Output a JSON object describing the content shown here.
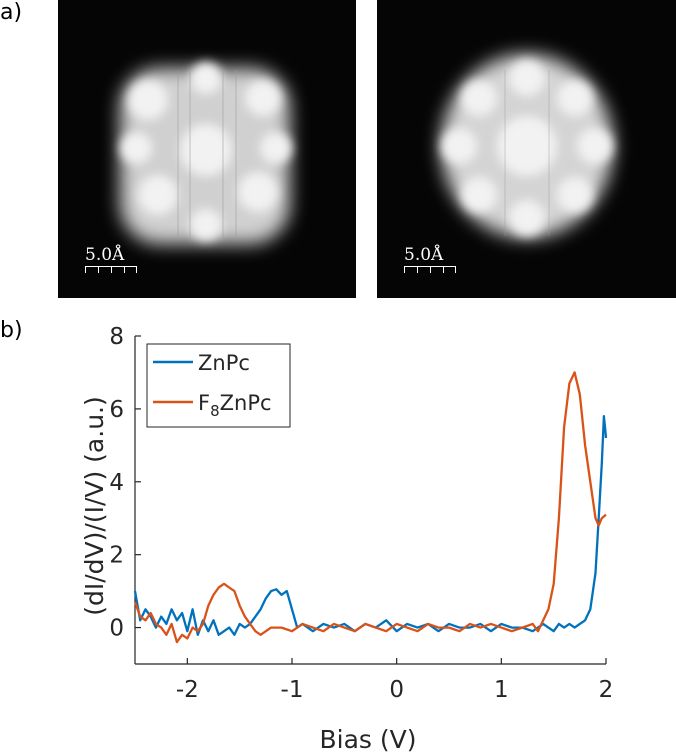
{
  "panels": {
    "a_label": "a)",
    "b_label": "b)"
  },
  "images": [
    {
      "name": "ZnPc STM image",
      "scale_label": "5.0Å"
    },
    {
      "name": "F8ZnPc STM image",
      "scale_label": "5.0Å"
    }
  ],
  "chart_data": {
    "type": "line",
    "xlabel": "Bias (V)",
    "ylabel": "(dI/dV)/(I/V) (a.u.)",
    "xlim": [
      -2.5,
      2.0
    ],
    "ylim": [
      -1,
      8
    ],
    "xticks": [
      -2,
      -1,
      0,
      1,
      2
    ],
    "yticks": [
      0,
      2,
      4,
      6,
      8
    ],
    "legend_position": "top-left",
    "series": [
      {
        "name": "ZnPc",
        "color": "#0072BD",
        "x": [
          -2.5,
          -2.45,
          -2.4,
          -2.35,
          -2.3,
          -2.25,
          -2.2,
          -2.15,
          -2.1,
          -2.05,
          -2.0,
          -1.95,
          -1.9,
          -1.85,
          -1.8,
          -1.75,
          -1.7,
          -1.65,
          -1.6,
          -1.55,
          -1.5,
          -1.45,
          -1.4,
          -1.35,
          -1.3,
          -1.25,
          -1.2,
          -1.15,
          -1.1,
          -1.05,
          -1.0,
          -0.95,
          -0.9,
          -0.8,
          -0.7,
          -0.6,
          -0.5,
          -0.4,
          -0.3,
          -0.2,
          -0.1,
          0.0,
          0.1,
          0.2,
          0.3,
          0.4,
          0.5,
          0.6,
          0.7,
          0.8,
          0.9,
          1.0,
          1.1,
          1.2,
          1.3,
          1.4,
          1.45,
          1.5,
          1.55,
          1.6,
          1.65,
          1.7,
          1.75,
          1.8,
          1.85,
          1.9,
          1.93,
          1.96,
          1.98,
          1.99,
          2.0
        ],
        "y": [
          1.0,
          0.2,
          0.5,
          0.3,
          0.0,
          0.3,
          0.1,
          0.5,
          0.2,
          0.4,
          -0.1,
          0.5,
          -0.2,
          0.2,
          -0.1,
          0.2,
          -0.2,
          -0.1,
          0.0,
          -0.2,
          0.1,
          0.0,
          0.1,
          0.3,
          0.5,
          0.8,
          1.0,
          1.05,
          0.9,
          1.0,
          0.5,
          0.0,
          0.1,
          -0.1,
          0.1,
          0.0,
          0.1,
          -0.1,
          0.1,
          0.0,
          0.2,
          -0.1,
          0.1,
          0.0,
          0.1,
          -0.1,
          0.1,
          0.0,
          0.0,
          0.1,
          -0.1,
          0.1,
          0.0,
          0.0,
          -0.1,
          0.1,
          0.0,
          -0.1,
          0.1,
          0.0,
          0.1,
          0.0,
          0.1,
          0.2,
          0.5,
          1.5,
          3.0,
          4.5,
          5.8,
          5.5,
          5.2
        ]
      },
      {
        "name": "F8ZnPc",
        "color": "#D95319",
        "x": [
          -2.5,
          -2.45,
          -2.4,
          -2.35,
          -2.3,
          -2.25,
          -2.2,
          -2.15,
          -2.1,
          -2.05,
          -2.0,
          -1.95,
          -1.9,
          -1.85,
          -1.8,
          -1.75,
          -1.7,
          -1.65,
          -1.6,
          -1.55,
          -1.5,
          -1.45,
          -1.4,
          -1.35,
          -1.3,
          -1.2,
          -1.1,
          -1.0,
          -0.9,
          -0.8,
          -0.7,
          -0.6,
          -0.5,
          -0.4,
          -0.3,
          -0.2,
          -0.1,
          0.0,
          0.1,
          0.2,
          0.3,
          0.4,
          0.5,
          0.6,
          0.7,
          0.8,
          0.9,
          1.0,
          1.1,
          1.2,
          1.3,
          1.35,
          1.4,
          1.45,
          1.5,
          1.55,
          1.6,
          1.65,
          1.7,
          1.75,
          1.8,
          1.85,
          1.9,
          1.93,
          1.96,
          2.0
        ],
        "y": [
          0.7,
          0.3,
          0.2,
          0.4,
          0.1,
          0.0,
          -0.2,
          0.1,
          -0.4,
          -0.2,
          -0.3,
          0.0,
          -0.1,
          0.1,
          0.6,
          0.9,
          1.1,
          1.2,
          1.1,
          1.0,
          0.6,
          0.3,
          0.1,
          -0.1,
          -0.2,
          0.0,
          0.0,
          -0.1,
          0.1,
          0.0,
          -0.1,
          0.1,
          0.0,
          -0.1,
          0.1,
          0.0,
          -0.1,
          0.1,
          0.0,
          -0.1,
          0.1,
          0.0,
          0.0,
          -0.1,
          0.1,
          0.0,
          0.1,
          0.0,
          -0.1,
          0.0,
          0.1,
          -0.1,
          0.2,
          0.5,
          1.2,
          3.0,
          5.5,
          6.7,
          7.0,
          6.4,
          5.0,
          4.0,
          3.0,
          2.8,
          3.0,
          3.1
        ]
      }
    ]
  }
}
